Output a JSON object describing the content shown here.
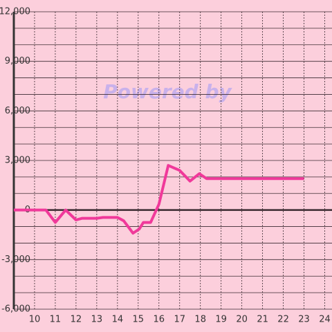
{
  "chart_data": {
    "type": "line",
    "watermark": "Powered by",
    "x": [
      9,
      10.55,
      11,
      11.5,
      12,
      12.3,
      13,
      13.3,
      14,
      14.3,
      14.75,
      15.05,
      15.25,
      15.6,
      16,
      16.45,
      17,
      17.5,
      17.95,
      18.3,
      23
    ],
    "series": [
      {
        "color": "#f0399a",
        "values": [
          0,
          0,
          -750,
          0,
          -600,
          -500,
          -500,
          -450,
          -450,
          -650,
          -1400,
          -1150,
          -750,
          -750,
          350,
          2700,
          2400,
          1750,
          2200,
          1900,
          1900
        ]
      }
    ],
    "xlim": [
      9,
      24.35
    ],
    "xticks": [
      10,
      11,
      12,
      13,
      14,
      15,
      16,
      17,
      18,
      19,
      20,
      21,
      22,
      23,
      24
    ],
    "ylim": [
      -6000,
      12000
    ],
    "yticks": [
      {
        "value": -6000,
        "label": "-6,000"
      },
      {
        "value": -3000,
        "label": "-3,000"
      },
      0,
      {
        "value": 3000,
        "label": "3,000"
      },
      {
        "value": 6000,
        "label": "6,000"
      },
      {
        "value": 9000,
        "label": "9,000"
      },
      {
        "value": 12000,
        "label": "12,000"
      }
    ],
    "yminorticks": [
      -5000,
      -4000,
      -2000,
      -1000,
      1000,
      2000,
      4000,
      5000,
      7000,
      8000,
      10000,
      11000
    ],
    "grid": true
  }
}
